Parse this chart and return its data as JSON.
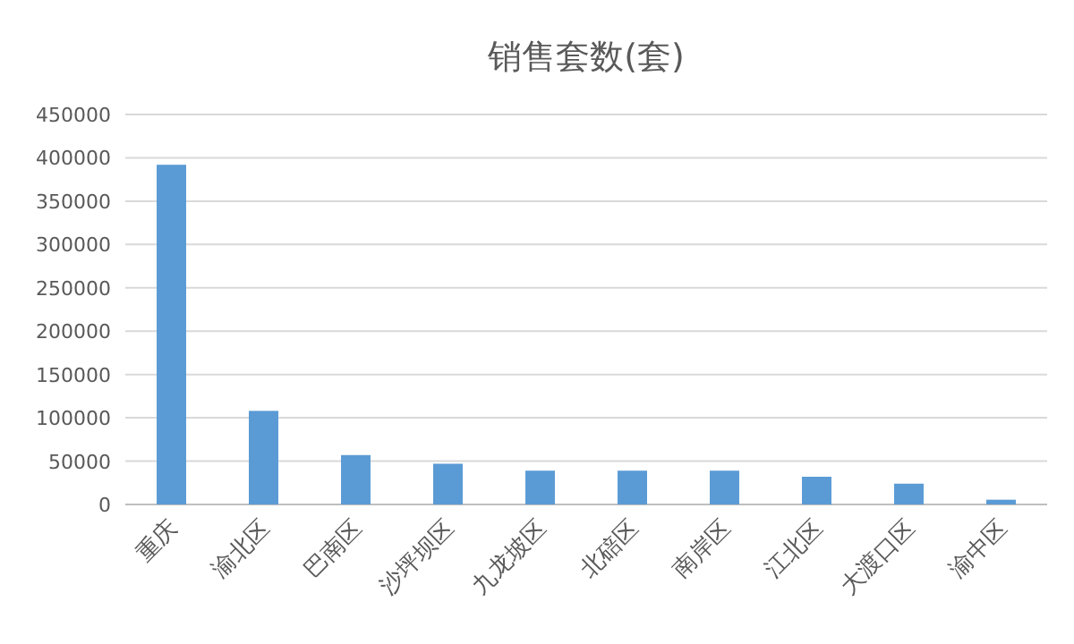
{
  "chart_data": {
    "type": "bar",
    "title": "销售套数(套)",
    "categories": [
      "重庆",
      "渝北区",
      "巴南区",
      "沙坪坝区",
      "九龙坡区",
      "北碚区",
      "南岸区",
      "江北区",
      "大渡口区",
      "渝中区"
    ],
    "values": [
      392000,
      108000,
      57000,
      47000,
      39000,
      39000,
      39000,
      32000,
      24000,
      5500
    ],
    "color": "#5b9bd5",
    "ylim": [
      0,
      450000
    ],
    "yticks": [
      0,
      50000,
      100000,
      150000,
      200000,
      250000,
      300000,
      350000,
      400000,
      450000
    ],
    "grid": "y"
  }
}
